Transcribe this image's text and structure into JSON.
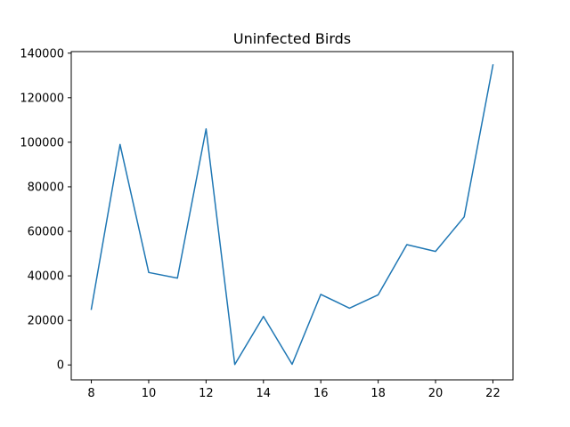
{
  "chart_data": {
    "type": "line",
    "title": "Uninfected Birds",
    "xlabel": "",
    "ylabel": "",
    "xlim": [
      7.3,
      22.7
    ],
    "ylim": [
      -6700,
      140700
    ],
    "xticks": [
      8,
      10,
      12,
      14,
      16,
      18,
      20,
      22
    ],
    "yticks": [
      0,
      20000,
      40000,
      60000,
      80000,
      100000,
      120000,
      140000
    ],
    "grid": false,
    "line_color": "#1f77b4",
    "series": [
      {
        "x": [
          8,
          9,
          10,
          11,
          12,
          13,
          14,
          15,
          16,
          17,
          18,
          19,
          20,
          21,
          22
        ],
        "values": [
          25000,
          99000,
          41500,
          39000,
          106000,
          200,
          21800,
          300,
          31700,
          25500,
          31500,
          54000,
          51000,
          66500,
          134700
        ]
      }
    ]
  }
}
